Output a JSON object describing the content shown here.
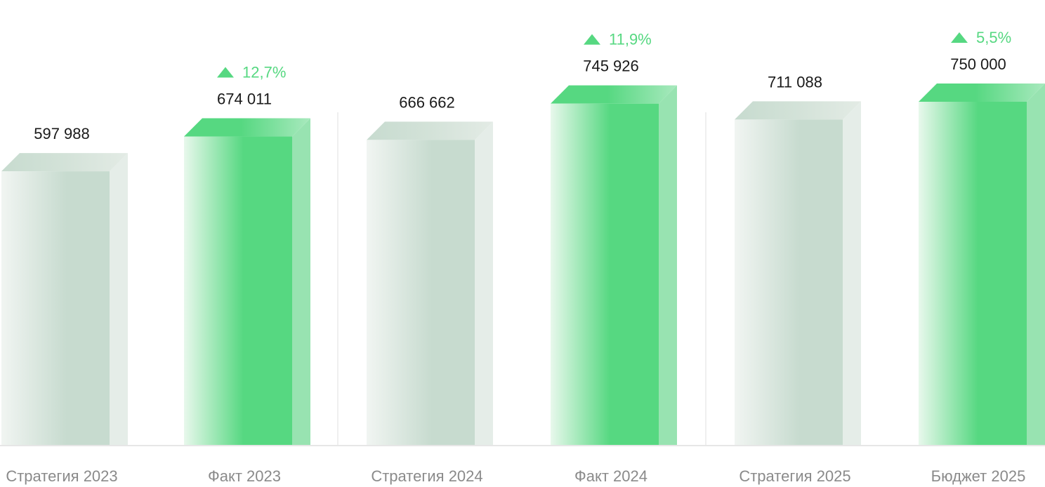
{
  "chart_data": {
    "type": "bar",
    "categories": [
      "Стратегия 2023",
      "Факт 2023",
      "Стратегия 2024",
      "Факт 2024",
      "Стратегия 2025",
      "Бюджет 2025"
    ],
    "values": [
      597988,
      674011,
      666662,
      745926,
      711088,
      750000
    ],
    "value_labels": [
      "597 988",
      "674 011",
      "666 662",
      "745 926",
      "711 088",
      "750 000"
    ],
    "bar_styles": [
      "plan",
      "actual",
      "plan",
      "actual",
      "plan",
      "actual"
    ],
    "deltas": [
      {
        "index": 1,
        "label": "12,7%",
        "direction": "up"
      },
      {
        "index": 3,
        "label": "11,9%",
        "direction": "up"
      },
      {
        "index": 5,
        "label": "5,5%",
        "direction": "up"
      }
    ],
    "title": "",
    "xlabel": "",
    "ylabel": "",
    "grid": false,
    "colors": {
      "actual": "#56d881",
      "actual_light": "#e8f8ec",
      "actual_side": "#98e3b1",
      "plan": "#c7dbcf",
      "plan_light": "#f1f5f2",
      "plan_side": "#e5ede8",
      "delta": "#56d881",
      "value_text": "#1a1a1a",
      "category_text": "#8a8a8a",
      "baseline": "#e6e6e6"
    }
  }
}
